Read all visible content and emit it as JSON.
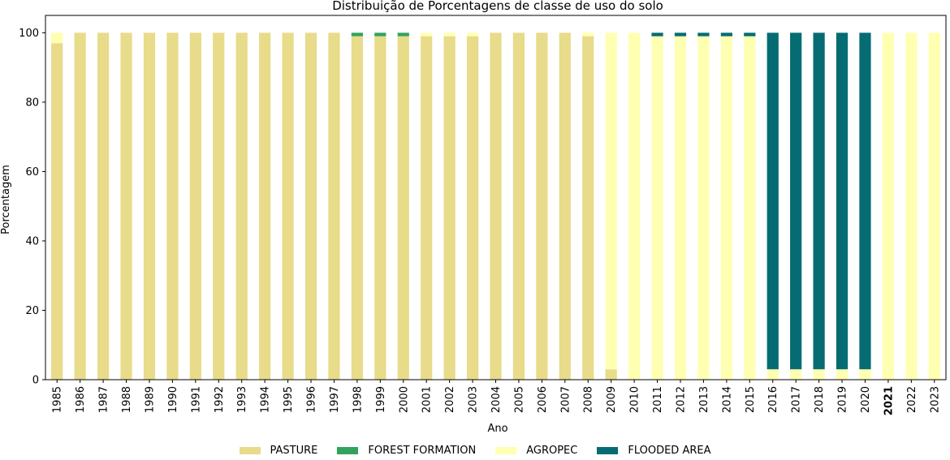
{
  "chart_data": {
    "type": "bar",
    "stacked": true,
    "title": "Distribuição de Porcentagens de classe de uso do solo",
    "xlabel": "Ano",
    "ylabel": "Porcentagem",
    "ylim": [
      0,
      105
    ],
    "yticks": [
      0,
      20,
      40,
      60,
      80,
      100
    ],
    "grid": false,
    "legend_position": "bottom-center",
    "highlighted_category": "2021",
    "categories": [
      "1985",
      "1986",
      "1987",
      "1988",
      "1989",
      "1990",
      "1991",
      "1992",
      "1993",
      "1994",
      "1995",
      "1996",
      "1997",
      "1998",
      "1999",
      "2000",
      "2001",
      "2002",
      "2003",
      "2004",
      "2005",
      "2006",
      "2007",
      "2008",
      "2009",
      "2010",
      "2011",
      "2012",
      "2013",
      "2014",
      "2015",
      "2016",
      "2017",
      "2018",
      "2019",
      "2020",
      "2021",
      "2022",
      "2023"
    ],
    "series": [
      {
        "name": "PASTURE",
        "color": "#e8db8a",
        "values": [
          97,
          100,
          100,
          100,
          100,
          100,
          100,
          100,
          100,
          100,
          100,
          100,
          100,
          99,
          99,
          99,
          99,
          99,
          99,
          100,
          100,
          100,
          100,
          99,
          3,
          0,
          0,
          0,
          0,
          0,
          0,
          0,
          0,
          0,
          0,
          0,
          0,
          0,
          0
        ]
      },
      {
        "name": "FOREST FORMATION",
        "color": "#31a35e",
        "values": [
          0,
          0,
          0,
          0,
          0,
          0,
          0,
          0,
          0,
          0,
          0,
          0,
          0,
          1,
          1,
          1,
          0,
          0,
          0,
          0,
          0,
          0,
          0,
          0,
          0,
          0,
          0,
          0,
          0,
          0,
          0,
          0,
          0,
          0,
          0,
          0,
          0,
          0,
          0
        ]
      },
      {
        "name": "AGROPEC",
        "color": "#ffffb2",
        "values": [
          3,
          0,
          0,
          0,
          0,
          0,
          0,
          0,
          0,
          0,
          0,
          0,
          0,
          0,
          0,
          0,
          1,
          1,
          1,
          0,
          0,
          0,
          0,
          1,
          97,
          100,
          99,
          99,
          99,
          99,
          99,
          3,
          3,
          3,
          3,
          3,
          100,
          100,
          100
        ]
      },
      {
        "name": "FLOODED AREA",
        "color": "#046c72",
        "values": [
          0,
          0,
          0,
          0,
          0,
          0,
          0,
          0,
          0,
          0,
          0,
          0,
          0,
          0,
          0,
          0,
          0,
          0,
          0,
          0,
          0,
          0,
          0,
          0,
          0,
          0,
          1,
          1,
          1,
          1,
          1,
          97,
          97,
          97,
          97,
          97,
          0,
          0,
          0
        ]
      }
    ]
  }
}
